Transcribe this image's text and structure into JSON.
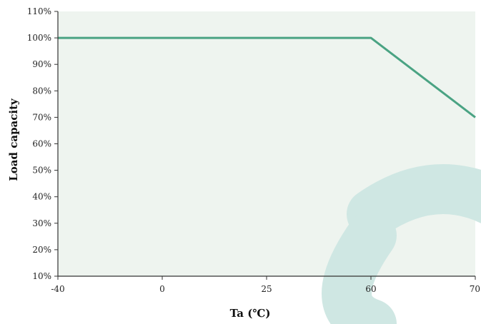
{
  "chart_data": {
    "type": "line",
    "xlabel": "Ta (℃)",
    "ylabel": "Load capacity",
    "x_ticks": [
      {
        "value": -40,
        "label": "-40"
      },
      {
        "value": 0,
        "label": "0"
      },
      {
        "value": 25,
        "label": "25"
      },
      {
        "value": 60,
        "label": "60"
      },
      {
        "value": 70,
        "label": "70"
      }
    ],
    "y_ticks": [
      {
        "value": 10,
        "label": "10%"
      },
      {
        "value": 20,
        "label": "20%"
      },
      {
        "value": 30,
        "label": "30%"
      },
      {
        "value": 40,
        "label": "40%"
      },
      {
        "value": 50,
        "label": "50%"
      },
      {
        "value": 60,
        "label": "60%"
      },
      {
        "value": 70,
        "label": "70%"
      },
      {
        "value": 80,
        "label": "80%"
      },
      {
        "value": 90,
        "label": "90%"
      },
      {
        "value": 100,
        "label": "100%"
      },
      {
        "value": 110,
        "label": "110%"
      }
    ],
    "series": [
      {
        "points": [
          {
            "x": -40,
            "y": 100
          },
          {
            "x": 60,
            "y": 100
          },
          {
            "x": 70,
            "y": 70
          }
        ],
        "color": "#4aa383"
      }
    ],
    "ylim": [
      10,
      110
    ],
    "grid": false,
    "plot_background": "#eef4ef",
    "watermark_color": "#cfe7e3"
  }
}
